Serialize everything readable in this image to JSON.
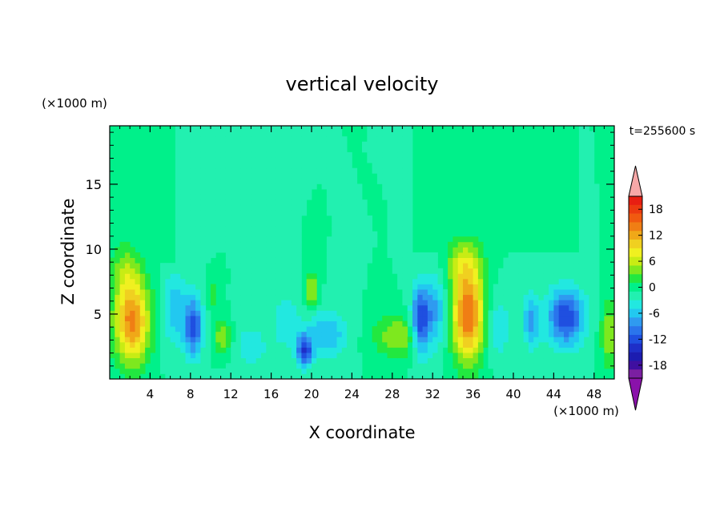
{
  "chart_data": {
    "type": "heatmap",
    "title": "vertical velocity",
    "xlabel": "X coordinate",
    "ylabel": "Z coordinate",
    "x_unit": "(×1000 m)",
    "y_unit": "(×1000 m)",
    "time_label": "t=255600  s",
    "xlim": [
      0,
      50
    ],
    "ylim": [
      0,
      19.5
    ],
    "x_ticks": [
      4,
      8,
      12,
      16,
      20,
      24,
      28,
      32,
      36,
      40,
      44,
      48
    ],
    "y_ticks": [
      5,
      10,
      15
    ],
    "colorbar": {
      "ticks": [
        18,
        12,
        6,
        0,
        -6,
        -12,
        -18
      ],
      "levels": [
        -20,
        -18,
        -16,
        -14,
        -12,
        -10,
        -8,
        -6,
        -4,
        -2,
        0,
        2,
        4,
        6,
        8,
        10,
        12,
        14,
        16,
        18,
        20
      ],
      "colors": [
        "#7b1fa2",
        "#3f0fa0",
        "#1c1cb0",
        "#1e2ec8",
        "#1f4fe0",
        "#2a74ec",
        "#2f9af0",
        "#22c8f0",
        "#22e8e0",
        "#22f0b0",
        "#00f08a",
        "#22e840",
        "#7ee81e",
        "#c8ec14",
        "#f0f020",
        "#f0d020",
        "#f0a818",
        "#f07e14",
        "#f05a10",
        "#ec3a10",
        "#e81e12"
      ],
      "upper_extend_color": "#f7a8a8",
      "lower_extend_color": "#8a12aa"
    },
    "field": {
      "background": 0,
      "features": [
        {
          "x": 2.2,
          "z": 4.5,
          "amplitude": 15,
          "width": 1.7,
          "height": 3.2
        },
        {
          "x": 1.5,
          "z": 8.5,
          "amplitude": 4,
          "width": 1.5,
          "height": 2
        },
        {
          "x": 8.3,
          "z": 4.0,
          "amplitude": -11,
          "width": 0.9,
          "height": 2.2
        },
        {
          "x": 6.5,
          "z": 5.5,
          "amplitude": -5,
          "width": 1.3,
          "height": 3
        },
        {
          "x": 11.2,
          "z": 3.2,
          "amplitude": 6,
          "width": 0.9,
          "height": 1.3
        },
        {
          "x": 10.2,
          "z": 6.5,
          "amplitude": 4,
          "width": 0.6,
          "height": 1
        },
        {
          "x": 14.0,
          "z": 2.5,
          "amplitude": -3,
          "width": 2,
          "height": 2
        },
        {
          "x": 19.3,
          "z": 2.2,
          "amplitude": -12,
          "width": 0.8,
          "height": 1.2
        },
        {
          "x": 21.5,
          "z": 3.5,
          "amplitude": -6,
          "width": 2,
          "height": 1.8
        },
        {
          "x": 20.0,
          "z": 6.8,
          "amplitude": 7,
          "width": 0.6,
          "height": 1.4
        },
        {
          "x": 17.5,
          "z": 4.5,
          "amplitude": -4,
          "width": 1.2,
          "height": 2
        },
        {
          "x": 28.5,
          "z": 3.3,
          "amplitude": 6,
          "width": 2.3,
          "height": 1.6
        },
        {
          "x": 30.8,
          "z": 4.5,
          "amplitude": -12,
          "width": 0.9,
          "height": 2.5
        },
        {
          "x": 32.3,
          "z": 5.2,
          "amplitude": -6,
          "width": 1.2,
          "height": 3
        },
        {
          "x": 35.5,
          "z": 5.0,
          "amplitude": 16,
          "width": 1.6,
          "height": 3.6
        },
        {
          "x": 35.0,
          "z": 9.0,
          "amplitude": 5,
          "width": 1.8,
          "height": 1.8
        },
        {
          "x": 38.5,
          "z": 4.0,
          "amplitude": -4,
          "width": 1.2,
          "height": 2.5
        },
        {
          "x": 41.8,
          "z": 4.5,
          "amplitude": -7,
          "width": 0.8,
          "height": 2
        },
        {
          "x": 45.2,
          "z": 4.8,
          "amplitude": -12,
          "width": 1.8,
          "height": 2.2
        },
        {
          "x": 49.5,
          "z": 3.5,
          "amplitude": 6,
          "width": 0.8,
          "height": 2.5
        }
      ],
      "upper_patches": [
        {
          "x": 3.3,
          "z": 14.3,
          "width": 6.8,
          "height": 10.4
        },
        {
          "x": 38.1,
          "z": 14.7,
          "width": 16.6,
          "height": 9.6
        }
      ]
    }
  }
}
